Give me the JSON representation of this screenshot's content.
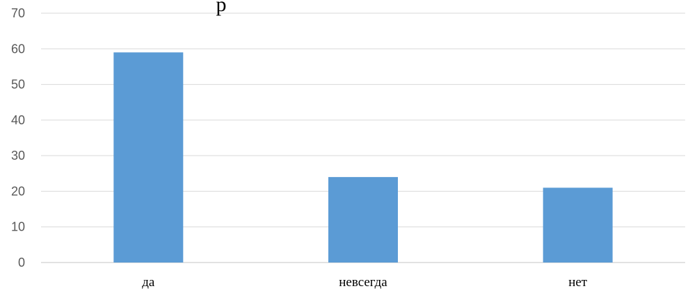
{
  "chart_data": {
    "type": "bar",
    "title": "р",
    "categories": [
      "да",
      "невсегда",
      "нет"
    ],
    "values": [
      59,
      24,
      21
    ],
    "ylim": [
      0,
      70
    ],
    "yticks": [
      0,
      10,
      20,
      30,
      40,
      50,
      60,
      70
    ],
    "grid": true,
    "legend": "none",
    "bar_color": "#5b9bd5",
    "grid_color": "#d9d9d9"
  }
}
